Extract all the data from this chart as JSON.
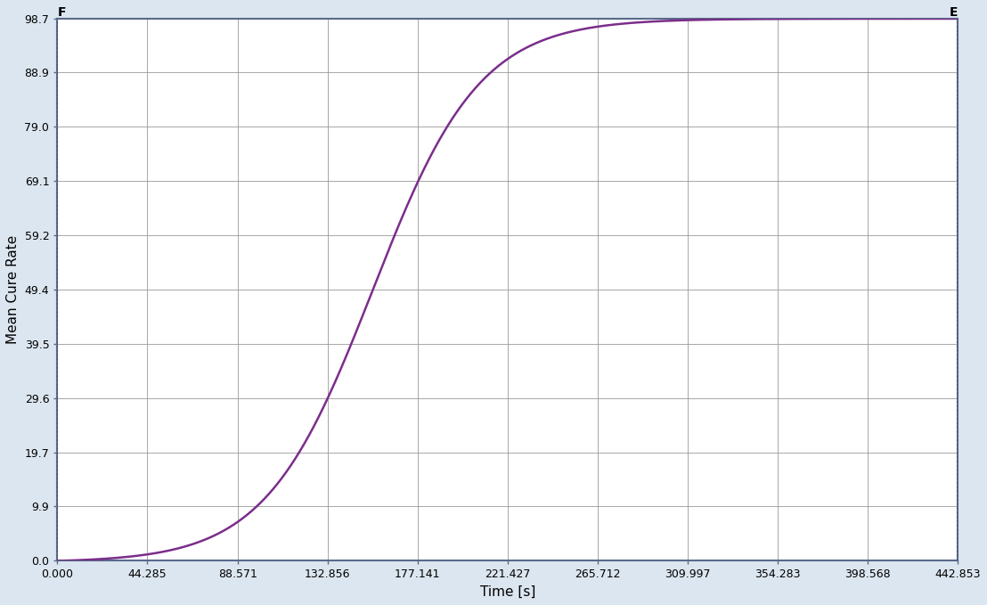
{
  "x_ticks": [
    0.0,
    44.285,
    88.571,
    132.856,
    177.141,
    221.427,
    265.712,
    309.997,
    354.283,
    398.568,
    442.853
  ],
  "y_ticks": [
    0.0,
    9.9,
    19.7,
    29.6,
    39.5,
    49.4,
    59.2,
    69.1,
    79.0,
    88.9,
    98.7
  ],
  "x_min": 0.0,
  "x_max": 442.853,
  "y_min": 0.0,
  "y_max": 98.7,
  "xlabel": "Time [s]",
  "ylabel": "Mean Cure Rate",
  "line_color": "#7B2D8B",
  "background_color": "#dce6f0",
  "plot_bg_color": "#ffffff",
  "grid_color": "#999999",
  "border_color": "#5a6a8a",
  "label_F": "F",
  "label_E": "E",
  "sigmoid_x0": 155.0,
  "sigmoid_k": 0.038
}
